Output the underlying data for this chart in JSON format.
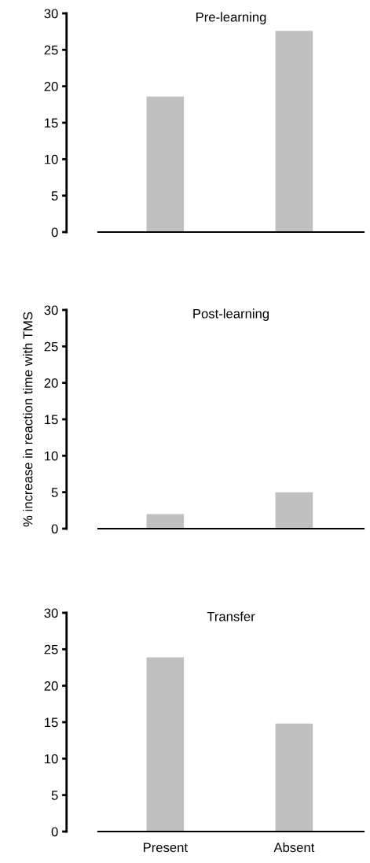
{
  "chart_data": [
    {
      "type": "bar",
      "title": "Pre-learning",
      "categories": [
        null,
        null
      ],
      "values": [
        18.6,
        27.6
      ],
      "color": "#c0c0c0",
      "ylim": [
        0,
        30
      ],
      "yticks": [
        0,
        5,
        10,
        15,
        20,
        25,
        30
      ],
      "grid": false
    },
    {
      "type": "bar",
      "title": "Post-learning",
      "ylabel": "% increase in reaction time with TMS",
      "categories": [
        null,
        null
      ],
      "values": [
        2,
        5
      ],
      "color": "#c0c0c0",
      "ylim": [
        0,
        30
      ],
      "yticks": [
        0,
        5,
        10,
        15,
        20,
        25,
        30
      ],
      "grid": false
    },
    {
      "type": "bar",
      "title": "Transfer",
      "categories": [
        "Present",
        "Absent"
      ],
      "values": [
        23.9,
        14.8
      ],
      "color": "#c0c0c0",
      "ylim": [
        0,
        30
      ],
      "yticks": [
        0,
        5,
        10,
        15,
        20,
        25,
        30
      ],
      "grid": false
    }
  ]
}
